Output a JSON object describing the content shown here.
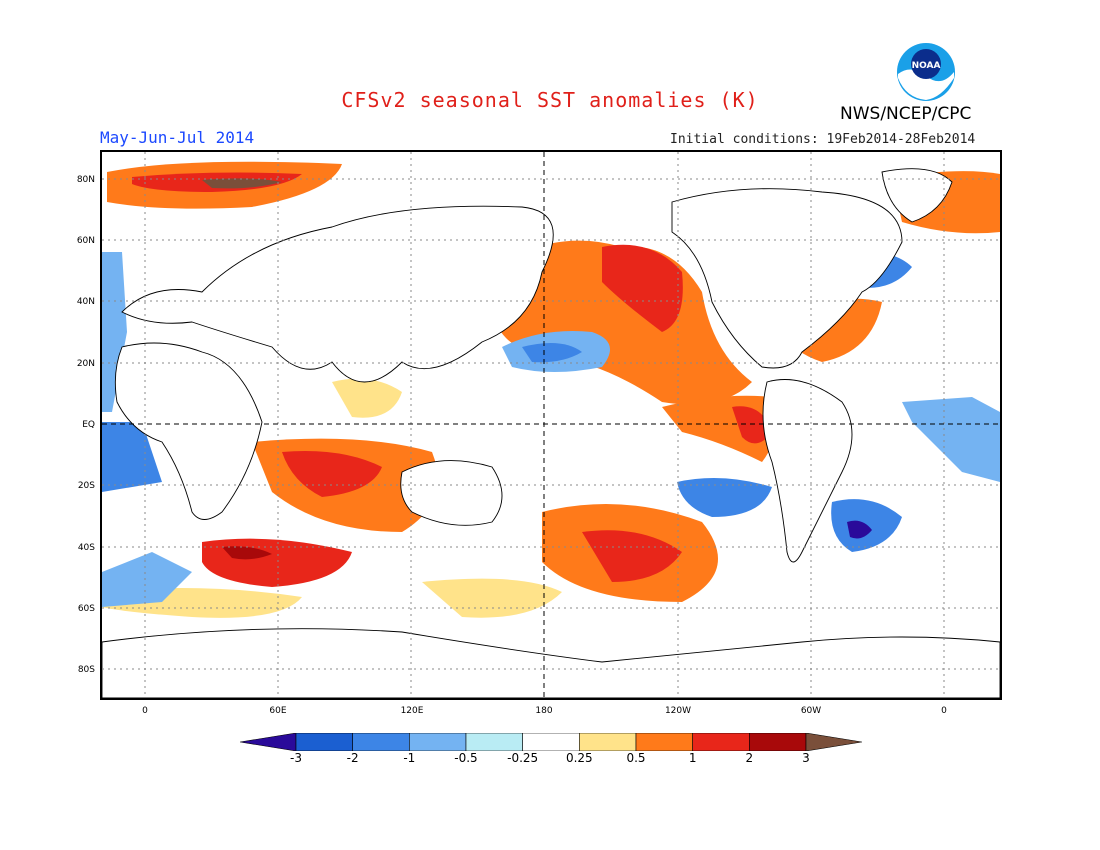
{
  "title": "CFSv2 seasonal SST anomalies (K)",
  "agency": "NWS/NCEP/CPC",
  "season": "May-Jun-Jul 2014",
  "initial_conditions": "Initial conditions: 19Feb2014-28Feb2014",
  "logo_text": "NOAA",
  "lat_labels": [
    "80N",
    "60N",
    "40N",
    "20N",
    "EQ",
    "20S",
    "40S",
    "60S",
    "80S"
  ],
  "lon_labels": [
    "0",
    "60E",
    "120E",
    "180",
    "120W",
    "60W",
    "0"
  ],
  "colorbar": {
    "labels": [
      "-3",
      "-2",
      "-1",
      "-0.5",
      "-0.25",
      "0.25",
      "0.5",
      "1",
      "2",
      "3"
    ],
    "colors": [
      "#2a0a9a",
      "#1b5fd1",
      "#3d85e6",
      "#74b3f2",
      "#b9ecf4",
      "#ffffff",
      "#ffe38a",
      "#ff7a1a",
      "#e8261a",
      "#a8090a",
      "#7a4f3a"
    ]
  }
}
